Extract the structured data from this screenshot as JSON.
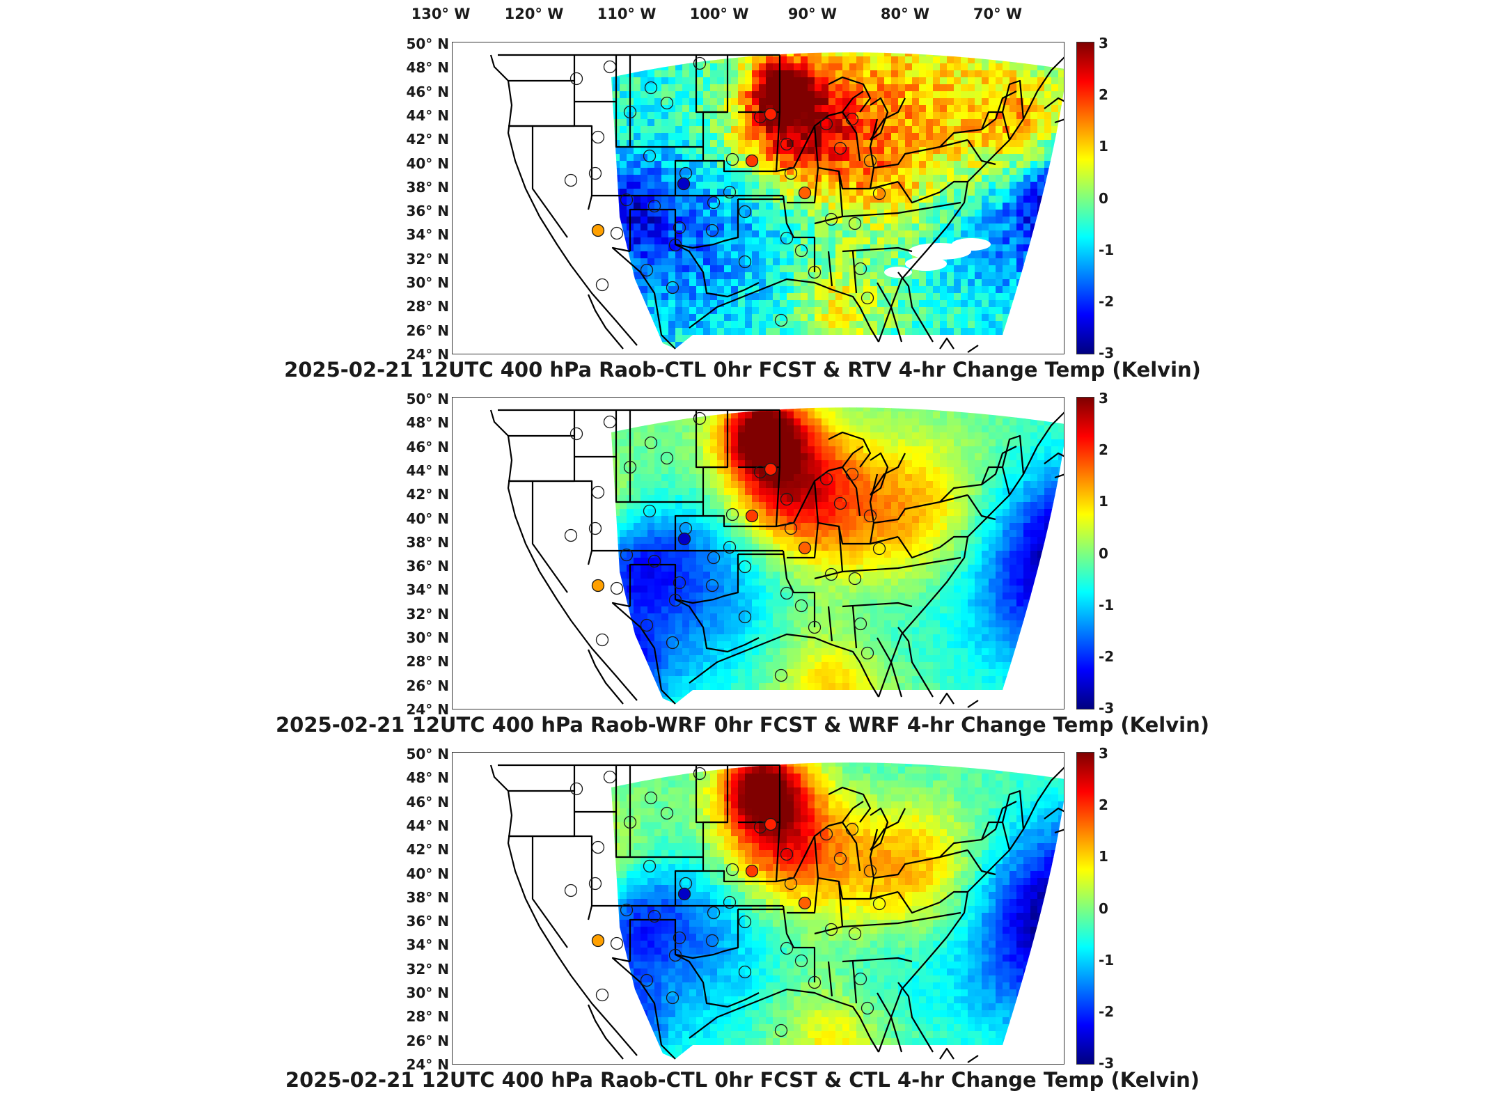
{
  "longitude_labels": [
    "130° W",
    "120° W",
    "110° W",
    "100° W",
    "90° W",
    "80° W",
    "70° W"
  ],
  "latitude_labels": [
    "50° N",
    "48° N",
    "46° N",
    "44° N",
    "42° N",
    "40° N",
    "38° N",
    "36° N",
    "34° N",
    "32° N",
    "30° N",
    "28° N",
    "26° N",
    "24° N"
  ],
  "colorbar": {
    "ticks": [
      "3",
      "2",
      "1",
      "0",
      "-1",
      "-2",
      "-3"
    ],
    "colormap": [
      "#00007f",
      "#0000ff",
      "#007fff",
      "#00ffff",
      "#7fff7f",
      "#ffff00",
      "#ff7f00",
      "#ff0000",
      "#7f0000"
    ]
  },
  "panels": [
    {
      "title": "2025-02-21 12UTC 400 hPa Raob-CTL 0hr FCST & RTV 4-hr Change Temp (Kelvin)"
    },
    {
      "title": "2025-02-21 12UTC 400 hPa Raob-WRF 0hr FCST & WRF 4-hr Change Temp (Kelvin)"
    },
    {
      "title": "2025-02-21 12UTC 400 hPa Raob-CTL 0hr FCST & CTL 4-hr Change Temp (Kelvin)"
    }
  ]
}
